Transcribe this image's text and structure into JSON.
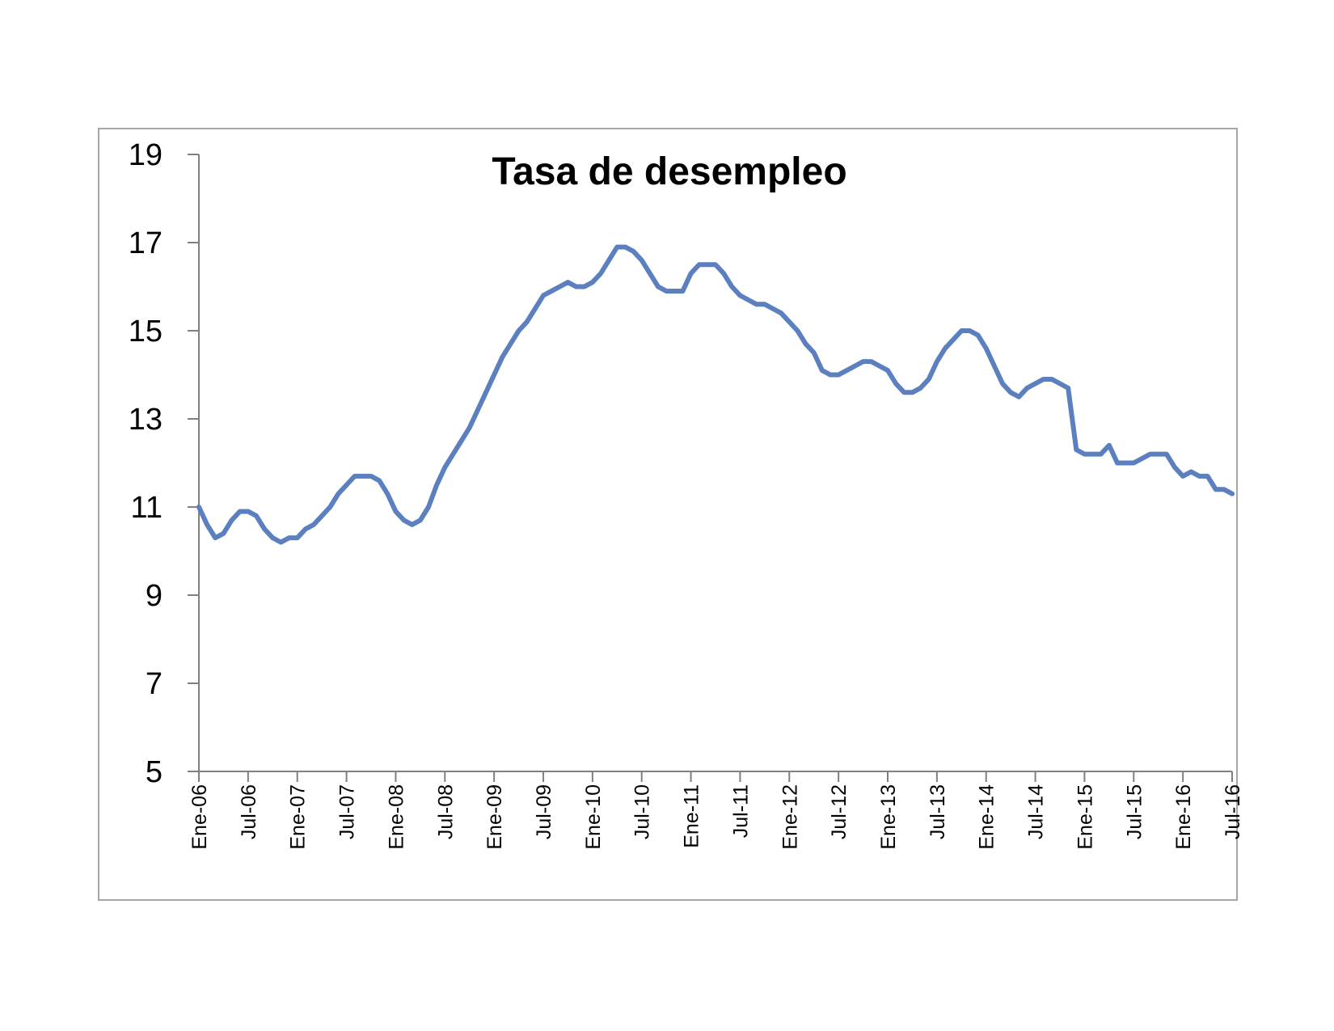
{
  "colors": {
    "line": "#5b7fbf",
    "axis": "#808080",
    "frame": "#a6a6a6",
    "text": "#000000"
  },
  "chart_data": {
    "type": "line",
    "title": "Tasa de desempleo",
    "xlabel": "",
    "ylabel": "",
    "ylim": [
      5,
      19
    ],
    "yticks": [
      5,
      7,
      9,
      11,
      13,
      15,
      17,
      19
    ],
    "x_tick_labels": [
      "Ene-06",
      "Jul-06",
      "Ene-07",
      "Jul-07",
      "Ene-08",
      "Jul-08",
      "Ene-09",
      "Jul-09",
      "Ene-10",
      "Jul-10",
      "Ene-11",
      "Jul-11",
      "Ene-12",
      "Jul-12",
      "Ene-13",
      "Jul-13",
      "Ene-14",
      "Jul-14",
      "Ene-15",
      "Jul-15",
      "Ene-16",
      "Jul-16"
    ],
    "x_start": "2006-01",
    "x_end": "2016-08",
    "grid": false,
    "legend": "none",
    "series": [
      {
        "values": [
          11.0,
          10.6,
          10.3,
          10.4,
          10.7,
          10.9,
          10.9,
          10.8,
          10.5,
          10.3,
          10.2,
          10.3,
          10.3,
          10.5,
          10.6,
          10.8,
          11.0,
          11.3,
          11.5,
          11.7,
          11.7,
          11.7,
          11.6,
          11.3,
          10.9,
          10.7,
          10.6,
          10.7,
          11.0,
          11.5,
          11.9,
          12.2,
          12.5,
          12.8,
          13.2,
          13.6,
          14.0,
          14.4,
          14.7,
          15.0,
          15.2,
          15.5,
          15.8,
          15.9,
          16.0,
          16.1,
          16.0,
          16.0,
          16.1,
          16.3,
          16.6,
          16.9,
          16.9,
          16.8,
          16.6,
          16.3,
          16.0,
          15.9,
          15.9,
          15.9,
          16.3,
          16.5,
          16.5,
          16.5,
          16.3,
          16.0,
          15.8,
          15.7,
          15.6,
          15.6,
          15.5,
          15.4,
          15.2,
          15.0,
          14.7,
          14.5,
          14.1,
          14.0,
          14.0,
          14.1,
          14.2,
          14.3,
          14.3,
          14.2,
          14.1,
          13.8,
          13.6,
          13.6,
          13.7,
          13.9,
          14.3,
          14.6,
          14.8,
          15.0,
          15.0,
          14.9,
          14.6,
          14.2,
          13.8,
          13.6,
          13.5,
          13.7,
          13.8,
          13.9,
          13.9,
          13.8,
          13.7,
          12.3,
          12.2,
          12.2,
          12.2,
          12.4,
          12.0,
          12.0,
          12.0,
          12.1,
          12.2,
          12.2,
          12.2,
          11.9,
          11.7,
          11.8,
          11.7,
          11.7,
          11.4,
          11.4,
          11.3
        ]
      }
    ]
  }
}
